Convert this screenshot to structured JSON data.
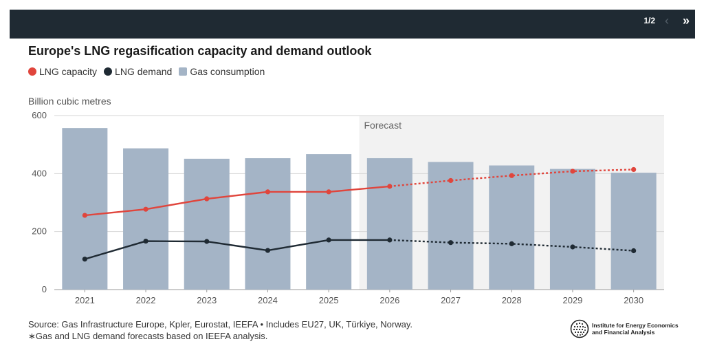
{
  "header": {
    "pager": "1/2",
    "prev_icon": "‹",
    "next_icon": "»"
  },
  "title": "Europe's LNG regasification capacity and demand outlook",
  "legend": [
    {
      "label": "LNG capacity",
      "color": "#e0453c",
      "shape": "dot"
    },
    {
      "label": "LNG demand",
      "color": "#1f2a33",
      "shape": "dot"
    },
    {
      "label": "Gas consumption",
      "color": "#a4b4c6",
      "shape": "square"
    }
  ],
  "source": {
    "line1": "Source: Gas Infrastructure Europe, Kpler, Eurostat, IEEFA • Includes EU27, UK, Türkiye, Norway.",
    "line2": "∗Gas and LNG demand forecasts based on IEEFA analysis."
  },
  "logo": {
    "text": "Institute for Energy Economics and Financial Analysis"
  },
  "chart_data": {
    "type": "bar",
    "ylabel": "Billion cubic metres",
    "ylim": [
      0,
      600
    ],
    "yticks": [
      0,
      200,
      400,
      600
    ],
    "grid": true,
    "forecast_label": "Forecast",
    "forecast_start": "2026",
    "categories": [
      "2021",
      "2022",
      "2023",
      "2024",
      "2025",
      "2026",
      "2027",
      "2028",
      "2029",
      "2030"
    ],
    "series": [
      {
        "name": "Gas consumption",
        "type": "bar",
        "color": "#a4b4c6",
        "values": [
          557,
          487,
          451,
          453,
          467,
          453,
          440,
          428,
          416,
          403
        ]
      },
      {
        "name": "LNG capacity",
        "type": "line",
        "color": "#e0453c",
        "values": [
          256,
          277,
          313,
          337,
          337,
          356,
          376,
          393,
          408,
          414
        ]
      },
      {
        "name": "LNG demand",
        "type": "line",
        "color": "#1f2a33",
        "values": [
          105,
          167,
          166,
          135,
          171,
          171,
          162,
          158,
          147,
          134
        ]
      }
    ]
  }
}
